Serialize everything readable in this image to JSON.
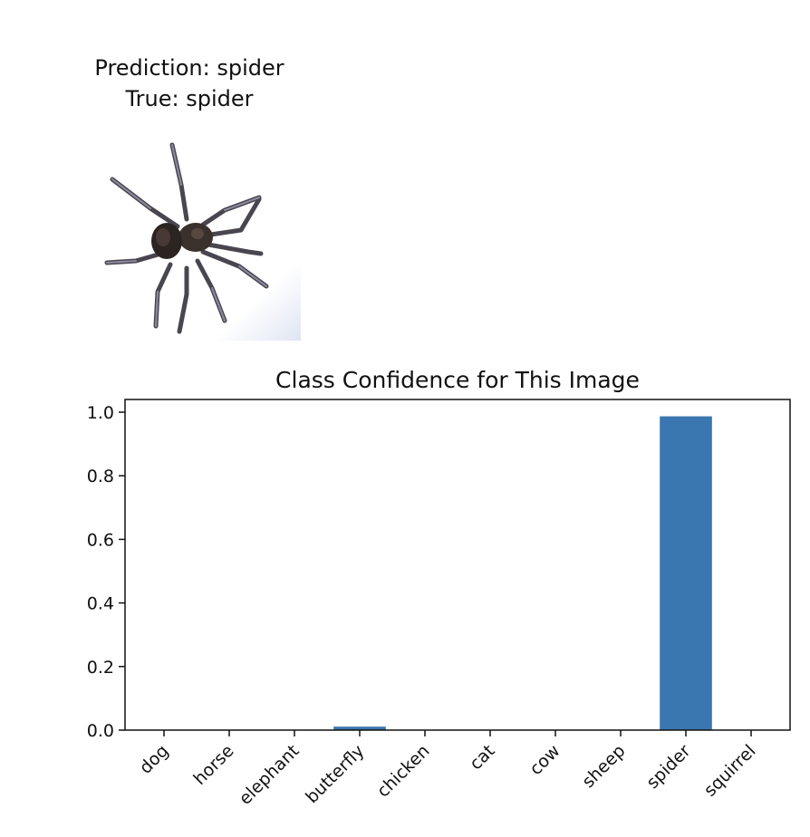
{
  "header": {
    "prediction_text": "Prediction: spider",
    "true_text": "True: spider"
  },
  "image": {
    "subject_icon": "spider-image",
    "colors": {
      "body": "#2c2421",
      "leg": "#4a4650",
      "leg_highlight": "#8e8aa0",
      "background_tint": "#e8ecf6"
    }
  },
  "chart_data": {
    "type": "bar",
    "title": "Class Confidence for This Image",
    "xlabel": "",
    "ylabel": "",
    "categories": [
      "dog",
      "horse",
      "elephant",
      "butterfly",
      "chicken",
      "cat",
      "cow",
      "sheep",
      "spider",
      "squirrel"
    ],
    "values": [
      0.0005,
      0.0005,
      0.0005,
      0.011,
      0.0005,
      0.0005,
      0.0005,
      0.0005,
      0.987,
      0.0005
    ],
    "ylim": [
      0,
      1.04
    ],
    "yticks": [
      0.0,
      0.2,
      0.4,
      0.6,
      0.8,
      1.0
    ],
    "ytick_labels": [
      "0.0",
      "0.2",
      "0.4",
      "0.6",
      "0.8",
      "1.0"
    ],
    "grid": false,
    "bar_color": "#3a76af"
  }
}
